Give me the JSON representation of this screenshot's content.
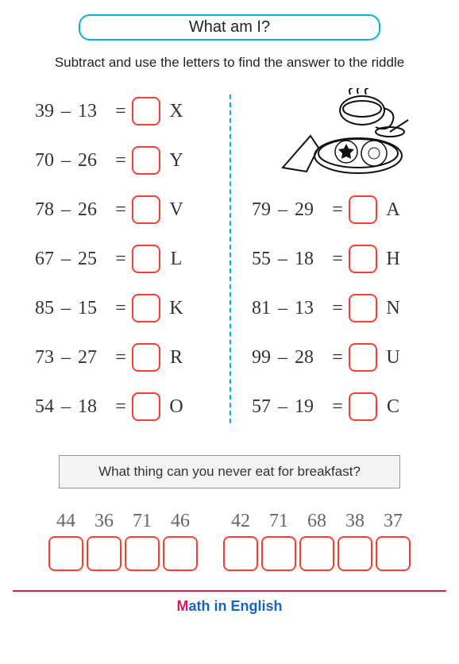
{
  "title": "What am I?",
  "instruction": "Subtract and use the letters to find the answer to the riddle",
  "colors": {
    "title_border": "#00b8d4",
    "divider": "#00b8d4",
    "box_border": "#ff3b30",
    "footer_line": "#d81b60",
    "footer_text": "#1565c0",
    "footer_accent": "#d81b60",
    "text": "#333333"
  },
  "problems_left": [
    {
      "a": "39",
      "b": "13",
      "letter": "X"
    },
    {
      "a": "70",
      "b": "26",
      "letter": "Y"
    },
    {
      "a": "78",
      "b": "26",
      "letter": "V"
    },
    {
      "a": "67",
      "b": "25",
      "letter": "L"
    },
    {
      "a": "85",
      "b": "15",
      "letter": "K"
    },
    {
      "a": "73",
      "b": "27",
      "letter": "R"
    },
    {
      "a": "54",
      "b": "18",
      "letter": "O"
    }
  ],
  "problems_right": [
    {
      "a": "79",
      "b": "29",
      "letter": "A"
    },
    {
      "a": "55",
      "b": "18",
      "letter": "H"
    },
    {
      "a": "81",
      "b": "13",
      "letter": "N"
    },
    {
      "a": "99",
      "b": "28",
      "letter": "U"
    },
    {
      "a": "57",
      "b": "19",
      "letter": "C"
    }
  ],
  "riddle": "What thing can you never eat for breakfast?",
  "answer_group1": [
    "44",
    "36",
    "71",
    "46"
  ],
  "answer_group2": [
    "42",
    "71",
    "68",
    "38",
    "37"
  ],
  "footer": {
    "accent": "M",
    "rest": "ath in English"
  },
  "symbols": {
    "minus": "–",
    "equals": "="
  }
}
